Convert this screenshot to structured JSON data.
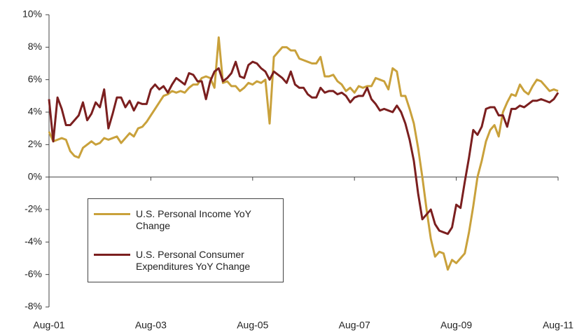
{
  "chart_data": {
    "type": "line",
    "categories": [
      "Aug-01",
      null,
      null,
      null,
      null,
      null,
      null,
      null,
      null,
      null,
      null,
      null,
      null,
      null,
      null,
      null,
      null,
      null,
      null,
      null,
      null,
      null,
      null,
      null,
      "Aug-03",
      null,
      null,
      null,
      null,
      null,
      null,
      null,
      null,
      null,
      null,
      null,
      null,
      null,
      null,
      null,
      null,
      null,
      null,
      null,
      null,
      null,
      null,
      null,
      "Aug-05",
      null,
      null,
      null,
      null,
      null,
      null,
      null,
      null,
      null,
      null,
      null,
      null,
      null,
      null,
      null,
      null,
      null,
      null,
      null,
      null,
      null,
      null,
      null,
      "Aug-07",
      null,
      null,
      null,
      null,
      null,
      null,
      null,
      null,
      null,
      null,
      null,
      null,
      null,
      null,
      null,
      null,
      null,
      null,
      null,
      null,
      null,
      null,
      null,
      "Aug-09",
      null,
      null,
      null,
      null,
      null,
      null,
      null,
      null,
      null,
      null,
      null,
      null,
      null,
      null,
      null,
      null,
      null,
      null,
      null,
      null,
      null,
      null,
      null,
      "Aug-11"
    ],
    "series": [
      {
        "name": "U.S. Personal Income YoY Change",
        "color": "#c9a13b",
        "values": [
          2.8,
          2.2,
          2.3,
          2.4,
          2.3,
          1.6,
          1.3,
          1.2,
          1.8,
          2.0,
          2.2,
          2.0,
          2.1,
          2.4,
          2.3,
          2.4,
          2.5,
          2.1,
          2.4,
          2.7,
          2.5,
          3.0,
          3.1,
          3.4,
          3.8,
          4.2,
          4.6,
          5.0,
          5.1,
          5.3,
          5.2,
          5.3,
          5.2,
          5.5,
          5.7,
          5.7,
          6.1,
          6.2,
          6.1,
          5.5,
          8.6,
          5.8,
          5.9,
          5.6,
          5.6,
          5.3,
          5.5,
          5.8,
          5.7,
          5.9,
          5.8,
          6.0,
          3.3,
          7.4,
          7.7,
          8.0,
          8.0,
          7.8,
          7.8,
          7.3,
          7.2,
          7.1,
          7.0,
          7.0,
          7.4,
          6.2,
          6.2,
          6.3,
          5.9,
          5.7,
          5.3,
          5.5,
          5.2,
          5.6,
          5.5,
          5.6,
          5.6,
          6.1,
          6.0,
          5.9,
          5.4,
          6.7,
          6.5,
          5.0,
          5.0,
          4.2,
          3.3,
          1.8,
          0.0,
          -2.0,
          -3.8,
          -4.9,
          -4.6,
          -4.7,
          -5.7,
          -5.1,
          -5.3,
          -5.0,
          -4.7,
          -3.4,
          -1.8,
          0.0,
          1.0,
          2.2,
          2.9,
          3.2,
          2.5,
          4.0,
          4.6,
          5.1,
          5.0,
          5.7,
          5.3,
          5.1,
          5.6,
          6.0,
          5.9,
          5.6,
          5.3,
          5.4,
          5.3
        ]
      },
      {
        "name": "U.S. Personal Consumer Expenditures YoY Change",
        "color": "#7b1f1f",
        "values": [
          4.8,
          2.2,
          4.9,
          4.2,
          3.2,
          3.2,
          3.5,
          3.8,
          4.6,
          3.5,
          3.9,
          4.6,
          4.3,
          5.4,
          3.0,
          3.9,
          4.9,
          4.9,
          4.3,
          4.7,
          4.1,
          4.6,
          4.5,
          4.5,
          5.4,
          5.7,
          5.4,
          5.6,
          5.2,
          5.7,
          6.1,
          5.9,
          5.7,
          6.4,
          6.3,
          5.9,
          5.9,
          4.8,
          5.9,
          6.5,
          6.7,
          5.9,
          6.1,
          6.4,
          7.1,
          6.2,
          6.1,
          6.9,
          7.1,
          7.0,
          6.7,
          6.5,
          6.0,
          6.5,
          6.3,
          6.1,
          5.8,
          6.5,
          5.7,
          5.5,
          5.5,
          5.1,
          4.9,
          4.9,
          5.5,
          5.2,
          5.3,
          5.3,
          5.1,
          5.2,
          5.0,
          4.6,
          4.9,
          5.0,
          5.0,
          5.5,
          4.8,
          4.5,
          4.1,
          4.2,
          4.1,
          4.0,
          4.4,
          4.0,
          3.3,
          2.3,
          1.0,
          -1.0,
          -2.6,
          -2.3,
          -2.0,
          -2.9,
          -3.3,
          -3.4,
          -3.5,
          -3.1,
          -1.7,
          -1.9,
          -0.3,
          1.2,
          2.9,
          2.6,
          3.1,
          4.2,
          4.3,
          4.3,
          3.8,
          3.8,
          3.1,
          4.2,
          4.2,
          4.4,
          4.3,
          4.5,
          4.7,
          4.7,
          4.8,
          4.7,
          4.6,
          4.8,
          5.2
        ]
      }
    ],
    "ylim": [
      -8,
      10
    ],
    "yticks": [
      {
        "value": -8,
        "label": "-8%"
      },
      {
        "value": -6,
        "label": "-6%"
      },
      {
        "value": -4,
        "label": "-4%"
      },
      {
        "value": -2,
        "label": "-2%"
      },
      {
        "value": 0,
        "label": "0%"
      },
      {
        "value": 2,
        "label": "2%"
      },
      {
        "value": 4,
        "label": "4%"
      },
      {
        "value": 6,
        "label": "6%"
      },
      {
        "value": 8,
        "label": "8%"
      },
      {
        "value": 10,
        "label": "10%"
      }
    ],
    "grid": false,
    "legend": "lower left"
  }
}
